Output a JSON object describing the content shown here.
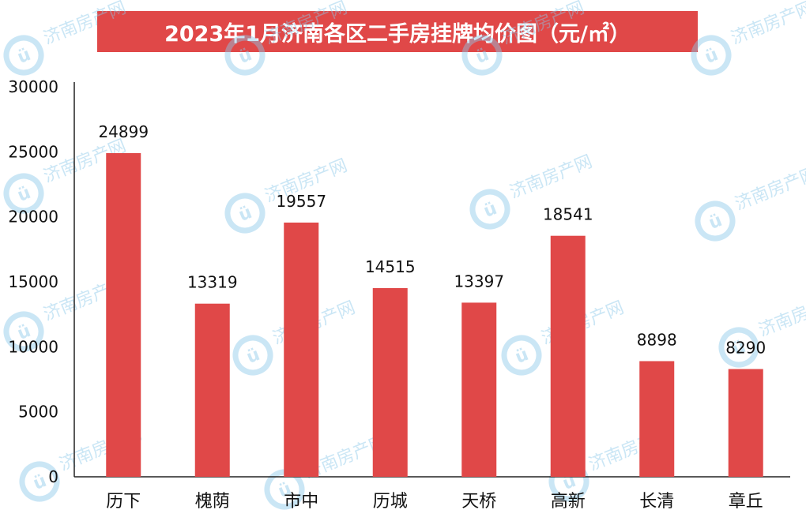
{
  "chart_data": {
    "type": "bar",
    "title": "2023年1月济南各区二手房挂牌均价图（元/㎡）",
    "categories": [
      "历下",
      "槐荫",
      "市中",
      "历城",
      "天桥",
      "高新",
      "长清",
      "章丘"
    ],
    "values": [
      24899,
      13319,
      19557,
      14515,
      13397,
      18541,
      8898,
      8290
    ],
    "data_labels": [
      "24899",
      "13319",
      "19557",
      "14515",
      "13397",
      "18541",
      "8898",
      "8290"
    ],
    "ylim": [
      0,
      30000
    ],
    "yticks": [
      0,
      5000,
      10000,
      15000,
      20000,
      25000,
      30000
    ],
    "ytick_labels": [
      "0",
      "5000",
      "10000",
      "15000",
      "20000",
      "25000",
      "30000"
    ],
    "xlabel": "",
    "ylabel": "",
    "grid": false,
    "legend": "none"
  },
  "colors": {
    "bar": "#e04848",
    "title_bg": "#e04848",
    "axis": "#222222",
    "watermark": "#8cc8ea"
  },
  "watermark": {
    "text": "济南房产网",
    "logo_letter": "ü"
  }
}
